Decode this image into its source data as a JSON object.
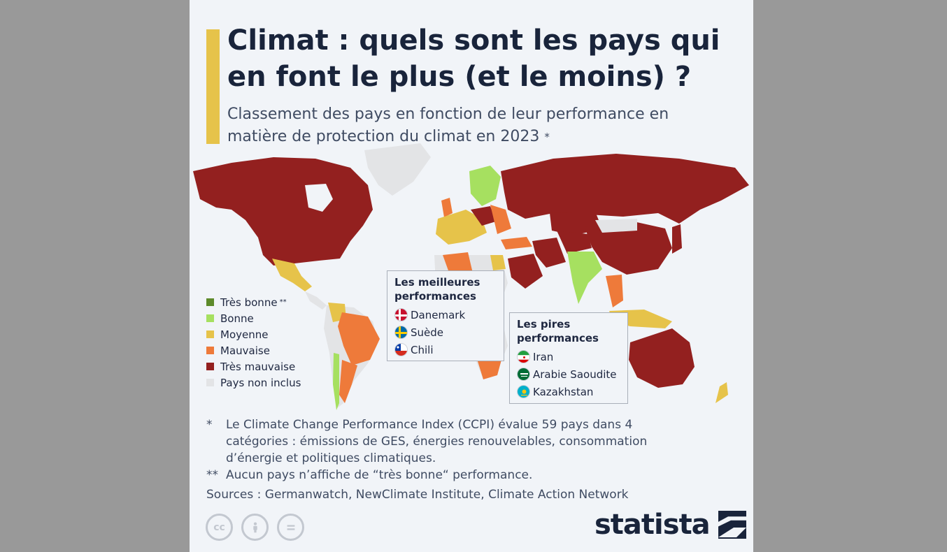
{
  "header": {
    "title": "Climat : quels sont les pays qui en font le plus (et le moins) ?",
    "subtitle": "Classement des pays en fonction de leur performance en matière de protection du climat en 2023",
    "subtitle_mark": "*"
  },
  "legend": {
    "items": [
      {
        "label": "Très bonne",
        "mark": "**",
        "color": "#5d8a2a"
      },
      {
        "label": "Bonne",
        "mark": "",
        "color": "#a6e060"
      },
      {
        "label": "Moyenne",
        "mark": "",
        "color": "#e6c34a"
      },
      {
        "label": "Mauvaise",
        "mark": "",
        "color": "#ee7a3a"
      },
      {
        "label": "Très mauvaise",
        "mark": "",
        "color": "#93201f"
      },
      {
        "label": "Pays non inclus",
        "mark": "",
        "color": "#e3e4e6"
      }
    ]
  },
  "best_box": {
    "title": "Les meilleures performances",
    "countries": [
      {
        "name": "Danemark",
        "flag": "denmark-flag-icon"
      },
      {
        "name": "Suède",
        "flag": "sweden-flag-icon"
      },
      {
        "name": "Chili",
        "flag": "chile-flag-icon"
      }
    ]
  },
  "worst_box": {
    "title": "Les pires performances",
    "countries": [
      {
        "name": "Iran",
        "flag": "iran-flag-icon"
      },
      {
        "name": "Arabie Saoudite",
        "flag": "saudi-arabia-flag-icon"
      },
      {
        "name": "Kazakhstan",
        "flag": "kazakhstan-flag-icon"
      }
    ]
  },
  "notes": [
    {
      "mark": "*",
      "text": "Le Climate Change Performance Index (CCPI) évalue 59 pays dans 4 catégories : émissions de GES, énergies renouvelables, consommation d’énergie et politiques climatiques."
    },
    {
      "mark": "**",
      "text": "Aucun pays n’affiche de “très bonne“ performance."
    }
  ],
  "sources": "Sources : Germanwatch, NewClimate Institute, Climate Action Network",
  "footer": {
    "license_icons": [
      "cc-icon",
      "attribution-icon",
      "no-derivatives-icon"
    ],
    "brand": "statista"
  }
}
